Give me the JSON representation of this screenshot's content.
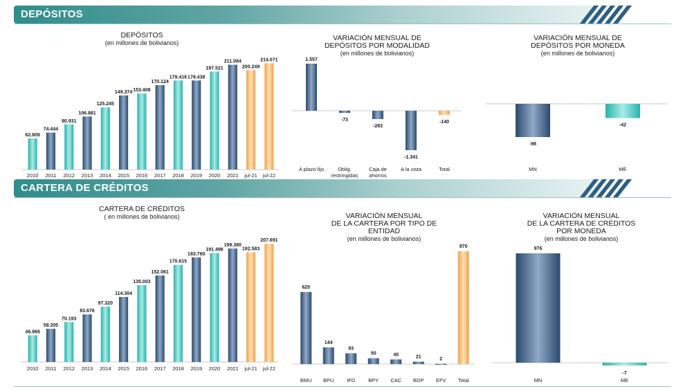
{
  "sections": {
    "depositos": "DEPÓSITOS",
    "cartera": "CARTERA DE CRÉDITOS"
  },
  "colors": {
    "dark": "#2c4a6e",
    "teal": "#29b3ad",
    "orange": "#f2a248",
    "banner": "#2f8d8a",
    "stripes": "#2d5f84"
  },
  "chart_data": [
    {
      "id": "dep_annual",
      "type": "bar",
      "title": [
        "DEPÓSITOS",
        "(en millones de bolivianos)"
      ],
      "categories": [
        "2010",
        "2011",
        "2012",
        "2013",
        "2014",
        "2015",
        "2016",
        "2017",
        "2018",
        "2019",
        "2020",
        "2021",
        "jul-21",
        "jul-22"
      ],
      "values": [
        62806,
        74444,
        90931,
        106881,
        125245,
        149374,
        153408,
        170124,
        179416,
        179438,
        197521,
        211084,
        200249,
        214071
      ],
      "labels": [
        "62.806",
        "74.444",
        "90.931",
        "106.881",
        "125.245",
        "149.374",
        "153.408",
        "170.124",
        "179.416",
        "179.438",
        "197.521",
        "211.084",
        "200.249",
        "214.071"
      ],
      "colors": [
        "teal",
        "dark",
        "teal",
        "dark",
        "teal",
        "dark",
        "teal",
        "dark",
        "teal",
        "dark",
        "teal",
        "dark",
        "orange",
        "orange"
      ],
      "ylim": [
        0,
        230000
      ]
    },
    {
      "id": "dep_modalidad",
      "type": "bar",
      "title": [
        "VARIACIÓN MENSUAL DE",
        "DEPÓSITOS POR MODALIDAD",
        "(en millones de bolivianos)"
      ],
      "categories": [
        [
          "A plazo fijo"
        ],
        [
          "Oblig.",
          "restringidas"
        ],
        [
          "Caja de",
          "ahorros"
        ],
        [
          "A la vista"
        ],
        [
          "Total"
        ]
      ],
      "values": [
        1557,
        -73,
        -283,
        -1341,
        -140
      ],
      "labels": [
        "1.557",
        "-73",
        "-283",
        "-1.341",
        "-140"
      ],
      "colors": [
        "dark",
        "dark",
        "dark",
        "dark",
        "orange"
      ],
      "ylim": [
        -1341,
        1557
      ]
    },
    {
      "id": "dep_moneda",
      "type": "bar",
      "title": [
        "VARIACIÓN MENSUAL DE",
        "DEPÓSITOS POR MONEDA",
        "(en millones de bolivianos)"
      ],
      "categories": [
        [
          "MN"
        ],
        [
          "ME"
        ]
      ],
      "values": [
        -98,
        -42
      ],
      "labels": [
        "-98",
        "-42"
      ],
      "colors": [
        "dark",
        "teal"
      ],
      "ylim": [
        -98,
        0
      ]
    },
    {
      "id": "cart_annual",
      "type": "bar",
      "title": [
        "CARTERA DE CRÉDITOS",
        "( en millones de bolivianos)"
      ],
      "categories": [
        "2010",
        "2011",
        "2012",
        "2013",
        "2014",
        "2015",
        "2016",
        "2017",
        "2018",
        "2019",
        "2020",
        "2021",
        "jul-21",
        "jul-22"
      ],
      "values": [
        46966,
        58305,
        70193,
        83676,
        97320,
        114304,
        135003,
        152061,
        170615,
        183760,
        191496,
        199380,
        192583,
        207691
      ],
      "labels": [
        "46.966",
        "58.305",
        "70.193",
        "83.676",
        "97.320",
        "114.304",
        "135.003",
        "152.061",
        "170.615",
        "183.760",
        "191.496",
        "199.380",
        "192.583",
        "207.691"
      ],
      "colors": [
        "teal",
        "dark",
        "teal",
        "dark",
        "teal",
        "dark",
        "teal",
        "dark",
        "teal",
        "dark",
        "teal",
        "dark",
        "orange",
        "orange"
      ],
      "ylim": [
        0,
        225000
      ]
    },
    {
      "id": "cart_entidad",
      "type": "bar",
      "title": [
        "VARIACIÓN MENSUAL",
        "DE LA CARTERA POR TIPO DE",
        "ENTIDAD",
        "(en millones de bolivianos)"
      ],
      "categories": [
        [
          "BMU"
        ],
        [
          "BPU"
        ],
        [
          "IFD"
        ],
        [
          "BPY"
        ],
        [
          "CAC"
        ],
        [
          "BDP"
        ],
        [
          "EFV"
        ],
        [
          "Total"
        ]
      ],
      "values": [
        620,
        144,
        93,
        50,
        40,
        21,
        2,
        970
      ],
      "labels": [
        "620",
        "144",
        "93",
        "50",
        "40",
        "21",
        "2",
        "970"
      ],
      "colors": [
        "dark",
        "dark",
        "dark",
        "dark",
        "dark",
        "dark",
        "dark",
        "orange"
      ],
      "ylim": [
        0,
        970
      ]
    },
    {
      "id": "cart_moneda",
      "type": "bar",
      "title": [
        "VARIACIÓN MENSUAL",
        "DE LA CARTERA DE CRÉDITOS",
        "POR MONEDA",
        "(en millones de bolivianos)"
      ],
      "categories": [
        [
          "MN"
        ],
        [
          "ME"
        ]
      ],
      "values": [
        976,
        -7
      ],
      "labels": [
        "976",
        "-7"
      ],
      "colors": [
        "dark",
        "teal"
      ],
      "ylim": [
        -7,
        976
      ]
    }
  ]
}
